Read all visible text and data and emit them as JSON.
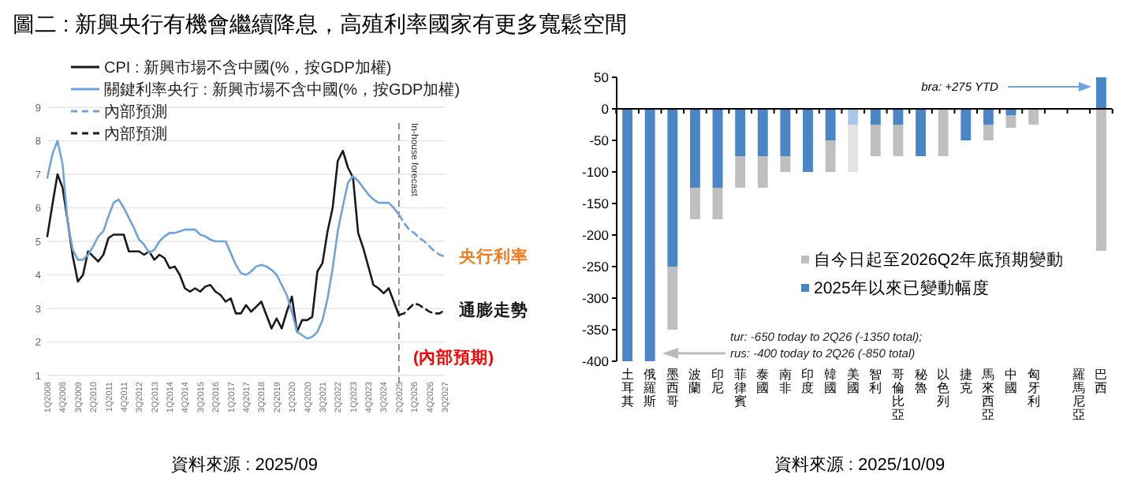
{
  "chart_data": [
    {
      "type": "line",
      "title": "圖二 : 新興央行有機會繼續降息，高殖利率國家有更多寬鬆空間",
      "categories": [
        "1Q2008",
        null,
        null,
        "4Q2008",
        null,
        null,
        "3Q2009",
        null,
        null,
        "2Q2010",
        null,
        null,
        "1Q2011",
        null,
        null,
        "4Q2011",
        null,
        null,
        "3Q2012",
        null,
        null,
        "2Q2013",
        null,
        null,
        "1Q2014",
        null,
        null,
        "4Q2014",
        null,
        null,
        "3Q2015",
        null,
        null,
        "2Q2016",
        null,
        null,
        "1Q2017",
        null,
        null,
        "4Q2017",
        null,
        null,
        "3Q2018",
        null,
        null,
        "2Q2019",
        null,
        null,
        "1Q2020",
        null,
        null,
        "4Q2020",
        null,
        null,
        "3Q2021",
        null,
        null,
        "2Q2022",
        null,
        null,
        "1Q2023",
        null,
        null,
        "4Q2023",
        null,
        null,
        "3Q2024",
        null,
        null,
        "2Q2025",
        null,
        null,
        "1Q2026",
        null,
        null,
        "4Q2026",
        null,
        null,
        "3Q2027"
      ],
      "series": [
        {
          "name": "CPI : 新興市場不含中國(%，按GDP加權)",
          "color": "#1a1a1a",
          "line_style": "solid",
          "values": [
            5.15,
            6.1,
            7.0,
            6.6,
            5.6,
            4.55,
            3.8,
            4.0,
            4.7,
            4.55,
            4.4,
            4.6,
            5.1,
            5.2,
            5.2,
            5.2,
            4.7,
            4.7,
            4.7,
            4.6,
            4.7,
            4.45,
            4.6,
            4.5,
            4.2,
            4.25,
            4.0,
            3.6,
            3.5,
            3.6,
            3.5,
            3.65,
            3.7,
            3.5,
            3.4,
            3.2,
            3.3,
            2.85,
            2.85,
            3.1,
            2.9,
            3.05,
            3.2,
            2.8,
            2.4,
            2.7,
            2.4,
            2.9,
            3.35,
            2.3,
            2.65,
            2.65,
            2.75,
            4.1,
            4.35,
            5.3,
            6.0,
            7.4,
            7.7,
            7.2,
            6.9,
            5.25,
            4.8,
            4.25,
            3.7,
            3.6,
            3.45,
            3.6,
            3.2,
            2.8,
            null,
            null,
            null,
            null,
            null,
            null,
            null,
            null,
            null
          ]
        },
        {
          "name": "關鍵利率央行 : 新興市場不含中國(%，按GDP加權)",
          "color": "#6fa3dc",
          "line_style": "solid",
          "values": [
            6.9,
            7.6,
            8.0,
            7.3,
            5.55,
            4.75,
            4.45,
            4.45,
            4.6,
            4.85,
            5.15,
            5.3,
            5.75,
            6.15,
            6.25,
            6.0,
            5.7,
            5.4,
            5.05,
            4.9,
            4.65,
            4.75,
            5.0,
            5.15,
            5.25,
            5.25,
            5.3,
            5.35,
            5.35,
            5.35,
            5.2,
            5.15,
            5.05,
            5.0,
            5.0,
            5.0,
            4.65,
            4.3,
            4.05,
            4.0,
            4.1,
            4.25,
            4.3,
            4.25,
            4.15,
            4.0,
            3.7,
            3.4,
            2.9,
            2.3,
            2.2,
            2.1,
            2.15,
            2.3,
            2.65,
            3.3,
            4.2,
            5.3,
            6.05,
            6.75,
            6.95,
            6.8,
            6.6,
            6.4,
            6.25,
            6.15,
            6.15,
            6.15,
            6.0,
            5.8,
            null,
            null,
            null,
            null,
            null,
            null,
            null,
            null,
            null
          ]
        },
        {
          "name": "內部預測",
          "color": "#6fa3dc",
          "line_style": "dashed",
          "values": [
            null,
            null,
            null,
            null,
            null,
            null,
            null,
            null,
            null,
            null,
            null,
            null,
            null,
            null,
            null,
            null,
            null,
            null,
            null,
            null,
            null,
            null,
            null,
            null,
            null,
            null,
            null,
            null,
            null,
            null,
            null,
            null,
            null,
            null,
            null,
            null,
            null,
            null,
            null,
            null,
            null,
            null,
            null,
            null,
            null,
            null,
            null,
            null,
            null,
            null,
            null,
            null,
            null,
            null,
            null,
            null,
            null,
            null,
            null,
            null,
            null,
            null,
            null,
            null,
            null,
            null,
            null,
            null,
            null,
            5.8,
            5.55,
            5.35,
            5.25,
            5.1,
            5.0,
            4.85,
            4.7,
            4.6,
            4.55
          ]
        },
        {
          "name": "內部預測",
          "color": "#1a1a1a",
          "line_style": "dashed",
          "values": [
            null,
            null,
            null,
            null,
            null,
            null,
            null,
            null,
            null,
            null,
            null,
            null,
            null,
            null,
            null,
            null,
            null,
            null,
            null,
            null,
            null,
            null,
            null,
            null,
            null,
            null,
            null,
            null,
            null,
            null,
            null,
            null,
            null,
            null,
            null,
            null,
            null,
            null,
            null,
            null,
            null,
            null,
            null,
            null,
            null,
            null,
            null,
            null,
            null,
            null,
            null,
            null,
            null,
            null,
            null,
            null,
            null,
            null,
            null,
            null,
            null,
            null,
            null,
            null,
            null,
            null,
            null,
            null,
            null,
            2.8,
            2.85,
            3.0,
            3.15,
            3.1,
            3.0,
            2.9,
            2.85,
            2.85,
            2.95
          ]
        }
      ],
      "ylim": [
        1,
        9
      ],
      "yticks": [
        1,
        2,
        3,
        4,
        5,
        6,
        7,
        8,
        9
      ],
      "grid": "y",
      "legend": "top left",
      "ref_lines": [
        {
          "axis": "x",
          "value": "2Q2025",
          "label": "In-house forecast",
          "line_style": "dashed",
          "color": "#808080"
        }
      ],
      "annotations": [
        {
          "text": "央行利率",
          "x": "3Q2027",
          "y": 4.55
        },
        {
          "text": "通膨走勢",
          "x": "3Q2027",
          "y": 2.95
        },
        "(內部預期)",
        "資料來源 : 2025/09"
      ]
    },
    {
      "type": "bar",
      "stacked": true,
      "categories": [
        "土耳其",
        "俄羅斯",
        "墨西哥",
        "波蘭",
        "印尼",
        "菲律賓",
        "泰國",
        "南非",
        "印度",
        "韓國",
        "美國",
        "智利",
        "哥倫比亞",
        "秘魯",
        "以色列",
        "捷克",
        "馬來西亞",
        "中國",
        "匈牙利",
        null,
        "羅馬尼亞",
        "巴西"
      ],
      "series": [
        {
          "name": "2025年以來已變動幅度",
          "color": "#4a86c5",
          "colors": [
            "#4a86c5",
            "#4a86c5",
            "#4a86c5",
            "#4a86c5",
            "#4a86c5",
            "#4a86c5",
            "#4a86c5",
            "#4a86c5",
            "#4a86c5",
            "#4a86c5",
            "#a9c8e8",
            "#4a86c5",
            "#4a86c5",
            "#4a86c5",
            null,
            "#4a86c5",
            "#4a86c5",
            "#4a86c5",
            null,
            null,
            "#4a86c5",
            "#4a86c5"
          ],
          "values": [
            -400,
            -400,
            -250,
            -125,
            -125,
            -75,
            -75,
            -75,
            -100,
            -50,
            -25,
            -25,
            -25,
            -75,
            null,
            -50,
            -25,
            -10,
            null,
            null,
            0,
            50
          ]
        },
        {
          "name": "自今日起至2026Q2年底預期變動",
          "color": "#bfbfbf",
          "colors": [
            null,
            null,
            "#bfbfbf",
            "#bfbfbf",
            "#bfbfbf",
            "#bfbfbf",
            "#bfbfbf",
            "#bfbfbf",
            null,
            "#bfbfbf",
            "#e3e3e3",
            "#bfbfbf",
            "#bfbfbf",
            null,
            "#bfbfbf",
            null,
            "#bfbfbf",
            "#bfbfbf",
            "#bfbfbf",
            null,
            "#bfbfbf",
            "#bfbfbf"
          ],
          "values": [
            null,
            null,
            -100,
            -50,
            -50,
            -50,
            -50,
            -25,
            null,
            -50,
            -75,
            -50,
            -50,
            null,
            -75,
            null,
            -25,
            -20,
            -25,
            null,
            0,
            -225
          ]
        }
      ],
      "ylim": [
        -400,
        50
      ],
      "yticks": [
        50,
        0,
        -50,
        -100,
        -150,
        -200,
        -250,
        -300,
        -350,
        -400
      ],
      "legend": "bottom right",
      "annotations": [
        "bra: +275 YTD",
        "tur: -650 today to 2Q26 (-1350 total);",
        "rus: -400 today to 2Q26 (-850 total)",
        "資料來源 : 2025/10/09"
      ]
    }
  ]
}
